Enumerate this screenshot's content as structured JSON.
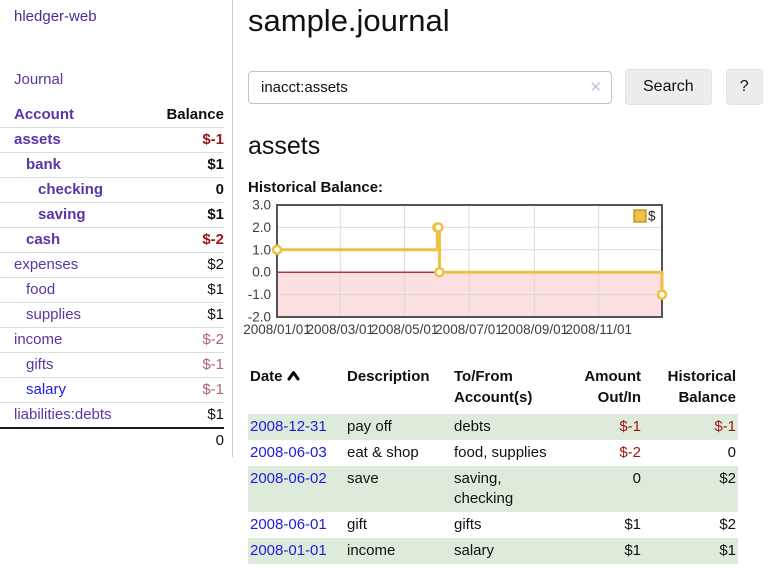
{
  "app": {
    "brand": "hledger-web"
  },
  "nav": {
    "journal_label": "Journal"
  },
  "sidebar": {
    "header": {
      "account": "Account",
      "balance": "Balance"
    },
    "accounts": [
      {
        "name": "assets",
        "indent": 0,
        "bold": true,
        "link": "purple",
        "balance": "$-1",
        "balance_style": "neg"
      },
      {
        "name": "bank",
        "indent": 1,
        "bold": true,
        "link": "purple",
        "balance": "$1",
        "balance_style": "normal"
      },
      {
        "name": "checking",
        "indent": 2,
        "bold": true,
        "link": "purple",
        "balance": "0",
        "balance_style": "normal"
      },
      {
        "name": "saving",
        "indent": 2,
        "bold": true,
        "link": "purple",
        "balance": "$1",
        "balance_style": "normal"
      },
      {
        "name": "cash",
        "indent": 1,
        "bold": true,
        "link": "purple",
        "balance": "$-2",
        "balance_style": "neg"
      },
      {
        "name": "expenses",
        "indent": 0,
        "bold": false,
        "link": "purple",
        "balance": "$2",
        "balance_style": "normal"
      },
      {
        "name": "food",
        "indent": 1,
        "bold": false,
        "link": "purple",
        "balance": "$1",
        "balance_style": "normal"
      },
      {
        "name": "supplies",
        "indent": 1,
        "bold": false,
        "link": "purple",
        "balance": "$1",
        "balance_style": "normal"
      },
      {
        "name": "income",
        "indent": 0,
        "bold": false,
        "link": "purple",
        "balance": "$-2",
        "balance_style": "neg-muted"
      },
      {
        "name": "gifts",
        "indent": 1,
        "bold": false,
        "link": "purple",
        "balance": "$-1",
        "balance_style": "neg-muted"
      },
      {
        "name": "salary",
        "indent": 1,
        "bold": false,
        "link": "blue",
        "balance": "$-1",
        "balance_style": "neg-muted"
      },
      {
        "name": "liabilities:debts",
        "indent": 0,
        "bold": false,
        "link": "purple",
        "balance": "$1",
        "balance_style": "normal"
      }
    ],
    "total": "0"
  },
  "header": {
    "page_title": "sample.journal"
  },
  "search": {
    "query": "inacct:assets",
    "clear_icon": "✕",
    "button_label": "Search",
    "help_label": "?"
  },
  "account_view": {
    "heading": "assets",
    "chart_label": "Historical Balance:"
  },
  "chart_data": {
    "type": "line",
    "title": "Historical Balance:",
    "step": true,
    "xlim": [
      "2008-01-01",
      "2008-12-31"
    ],
    "ylim": [
      -2,
      3
    ],
    "x_ticks": [
      "2008/01/01",
      "2008/03/01",
      "2008/05/01",
      "2008/07/01",
      "2008/09/01",
      "2008/11/01"
    ],
    "y_ticks": [
      3.0,
      2.0,
      1.0,
      0.0,
      -1.0,
      -2.0
    ],
    "legend": [
      {
        "label": "$",
        "color": "#edc240"
      }
    ],
    "legend_position": "top-right",
    "grid": true,
    "series": [
      {
        "name": "$",
        "color": "#edc240",
        "points": [
          {
            "x": "2008-01-01",
            "y": 1
          },
          {
            "x": "2008-06-01",
            "y": 2
          },
          {
            "x": "2008-06-02",
            "y": 2
          },
          {
            "x": "2008-06-03",
            "y": 0
          },
          {
            "x": "2008-12-31",
            "y": -1
          }
        ]
      }
    ],
    "negative_region_color": "#fcdfe0",
    "zero_line_color": "#8b0000",
    "gridline_color": "#d9d9d9",
    "border_color": "#545454"
  },
  "register": {
    "headers": {
      "date": "Date",
      "description": "Description",
      "accounts_line1": "To/From",
      "accounts_line2": "Account(s)",
      "amount_line1": "Amount",
      "amount_line2": "Out/In",
      "balance_line1": "Historical",
      "balance_line2": "Balance"
    },
    "rows": [
      {
        "date": "2008-12-31",
        "description": "pay off",
        "accounts": "debts",
        "amount": "$-1",
        "amount_style": "neg",
        "balance": "$-1",
        "balance_style": "neg",
        "shaded": true
      },
      {
        "date": "2008-06-03",
        "description": "eat & shop",
        "accounts": "food, supplies",
        "amount": "$-2",
        "amount_style": "neg",
        "balance": "0",
        "balance_style": "normal",
        "shaded": false
      },
      {
        "date": "2008-06-02",
        "description": "save",
        "accounts": "saving, checking",
        "amount": "0",
        "amount_style": "normal",
        "balance": "$2",
        "balance_style": "normal",
        "shaded": true
      },
      {
        "date": "2008-06-01",
        "description": "gift",
        "accounts": "gifts",
        "amount": "$1",
        "amount_style": "normal",
        "balance": "$2",
        "balance_style": "normal",
        "shaded": false
      },
      {
        "date": "2008-01-01",
        "description": "income",
        "accounts": "salary",
        "amount": "$1",
        "amount_style": "normal",
        "balance": "$1",
        "balance_style": "normal",
        "shaded": true
      }
    ]
  },
  "colors": {
    "link_purple": "#5b34a5",
    "link_blue": "#1d1de0",
    "negative_strong": "#9c1717",
    "negative_muted": "#b2646e",
    "row_shaded_green": "#deebda",
    "chart_line_gold": "#edc240"
  }
}
